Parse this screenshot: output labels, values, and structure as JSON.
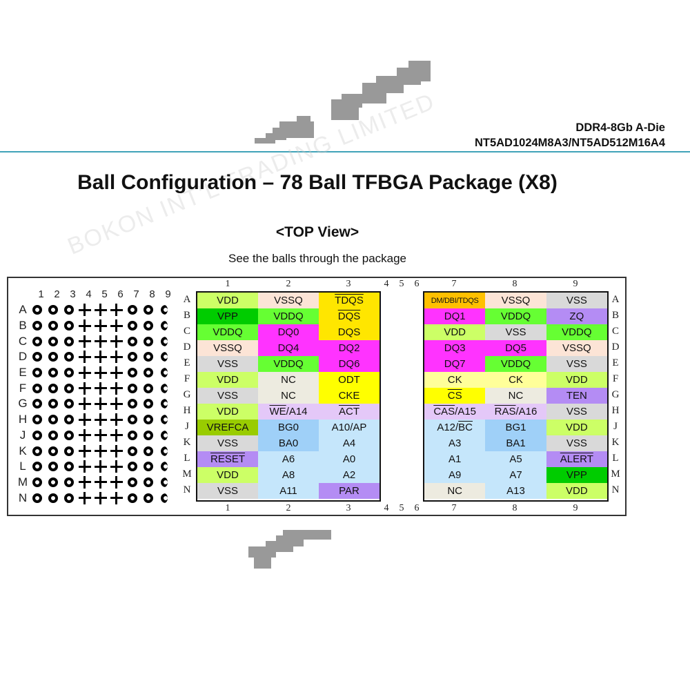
{
  "header": {
    "line1": "DDR4-8Gb A-Die",
    "line2": "NT5AD1024M8A3/NT5AD512M16A4",
    "rule_color": "#3fa3b8"
  },
  "watermark": "BOKON INT'L TRADING LIMITED",
  "title": "Ball Configuration – 78 Ball TFBGA Package (X8)",
  "subtitle": "<TOP View>",
  "caption": "See the balls through the package",
  "mini_map": {
    "columns": [
      "1",
      "2",
      "3",
      "4",
      "5",
      "6",
      "7",
      "8",
      "9"
    ],
    "rows": [
      "A",
      "B",
      "C",
      "D",
      "E",
      "F",
      "G",
      "H",
      "J",
      "K",
      "L",
      "M",
      "N"
    ],
    "pattern": [
      "ball",
      "ball",
      "ball",
      "plus",
      "plus",
      "plus",
      "ball",
      "ball",
      "ball-half"
    ]
  },
  "left_columns": [
    "1",
    "2",
    "3"
  ],
  "gap_columns": [
    "4",
    "5",
    "6"
  ],
  "right_columns": [
    "7",
    "8",
    "9"
  ],
  "rows": [
    "A",
    "B",
    "C",
    "D",
    "E",
    "F",
    "G",
    "H",
    "J",
    "K",
    "L",
    "M",
    "N"
  ],
  "colors": {
    "vdd": "#ccff66",
    "vpp": "#00cc00",
    "vddq": "#66ff33",
    "vssq": "#fce4d6",
    "vss": "#d9d9d9",
    "dq": "#ff33ff",
    "dqs": "#ffe600",
    "yellow": "#ffff00",
    "tdqs_dm": "#ffc000",
    "nc": "#edebe0",
    "cmd_light": "#e4c8f8",
    "purple": "#b48cf4",
    "vrefca": "#99cc00",
    "addr": "#c5e6fb",
    "bank": "#9fd0f8",
    "ck": "#ffff99"
  },
  "left_grid": [
    [
      {
        "t": "VDD",
        "c": "vdd"
      },
      {
        "t": "VSSQ",
        "c": "vssq"
      },
      {
        "t": "TDQS",
        "c": "dqs",
        "ol": true
      }
    ],
    [
      {
        "t": "VPP",
        "c": "vpp"
      },
      {
        "t": "VDDQ",
        "c": "vddq"
      },
      {
        "t": "DQS",
        "c": "dqs",
        "ol": true
      }
    ],
    [
      {
        "t": "VDDQ",
        "c": "vddq"
      },
      {
        "t": "DQ0",
        "c": "dq"
      },
      {
        "t": "DQS",
        "c": "dqs"
      }
    ],
    [
      {
        "t": "VSSQ",
        "c": "vssq"
      },
      {
        "t": "DQ4",
        "c": "dq"
      },
      {
        "t": "DQ2",
        "c": "dq"
      }
    ],
    [
      {
        "t": "VSS",
        "c": "vss"
      },
      {
        "t": "VDDQ",
        "c": "vddq"
      },
      {
        "t": "DQ6",
        "c": "dq"
      }
    ],
    [
      {
        "t": "VDD",
        "c": "vdd"
      },
      {
        "t": "NC",
        "c": "nc"
      },
      {
        "t": "ODT",
        "c": "yellow"
      }
    ],
    [
      {
        "t": "VSS",
        "c": "vss"
      },
      {
        "t": "NC",
        "c": "nc"
      },
      {
        "t": "CKE",
        "c": "yellow"
      }
    ],
    [
      {
        "t": "VDD",
        "c": "vdd"
      },
      {
        "t": "WE/A14",
        "c": "cmd_light",
        "ol_part": "WE"
      },
      {
        "t": "ACT",
        "c": "cmd_light",
        "ol": true
      }
    ],
    [
      {
        "t": "VREFCA",
        "c": "vrefca"
      },
      {
        "t": "BG0",
        "c": "bank"
      },
      {
        "t": "A10/AP",
        "c": "addr"
      }
    ],
    [
      {
        "t": "VSS",
        "c": "vss"
      },
      {
        "t": "BA0",
        "c": "bank"
      },
      {
        "t": "A4",
        "c": "addr"
      }
    ],
    [
      {
        "t": "RESET",
        "c": "purple",
        "ol": true
      },
      {
        "t": "A6",
        "c": "addr"
      },
      {
        "t": "A0",
        "c": "addr"
      }
    ],
    [
      {
        "t": "VDD",
        "c": "vdd"
      },
      {
        "t": "A8",
        "c": "addr"
      },
      {
        "t": "A2",
        "c": "addr"
      }
    ],
    [
      {
        "t": "VSS",
        "c": "vss"
      },
      {
        "t": "A11",
        "c": "addr"
      },
      {
        "t": "PAR",
        "c": "purple"
      }
    ]
  ],
  "right_grid": [
    [
      {
        "t": "DM/DBI/TDQS",
        "c": "tdqs_dm",
        "small": true
      },
      {
        "t": "VSSQ",
        "c": "vssq"
      },
      {
        "t": "VSS",
        "c": "vss"
      }
    ],
    [
      {
        "t": "DQ1",
        "c": "dq"
      },
      {
        "t": "VDDQ",
        "c": "vddq"
      },
      {
        "t": "ZQ",
        "c": "purple"
      }
    ],
    [
      {
        "t": "VDD",
        "c": "vdd"
      },
      {
        "t": "VSS",
        "c": "vss"
      },
      {
        "t": "VDDQ",
        "c": "vddq"
      }
    ],
    [
      {
        "t": "DQ3",
        "c": "dq"
      },
      {
        "t": "DQ5",
        "c": "dq"
      },
      {
        "t": "VSSQ",
        "c": "vssq"
      }
    ],
    [
      {
        "t": "DQ7",
        "c": "dq"
      },
      {
        "t": "VDDQ",
        "c": "vddq"
      },
      {
        "t": "VSS",
        "c": "vss"
      }
    ],
    [
      {
        "t": "CK",
        "c": "ck"
      },
      {
        "t": "CK",
        "c": "ck"
      },
      {
        "t": "VDD",
        "c": "vdd"
      }
    ],
    [
      {
        "t": "CS",
        "c": "yellow",
        "ol": true
      },
      {
        "t": "NC",
        "c": "nc"
      },
      {
        "t": "TEN",
        "c": "purple"
      }
    ],
    [
      {
        "t": "CAS/A15",
        "c": "cmd_light",
        "ol_part": "CAS"
      },
      {
        "t": "RAS/A16",
        "c": "cmd_light",
        "ol_part": "RAS"
      },
      {
        "t": "VSS",
        "c": "vss"
      }
    ],
    [
      {
        "t": "A12/BC",
        "c": "addr",
        "ol_suffix": "BC"
      },
      {
        "t": "BG1",
        "c": "bank"
      },
      {
        "t": "VDD",
        "c": "vdd"
      }
    ],
    [
      {
        "t": "A3",
        "c": "addr"
      },
      {
        "t": "BA1",
        "c": "bank"
      },
      {
        "t": "VSS",
        "c": "vss"
      }
    ],
    [
      {
        "t": "A1",
        "c": "addr"
      },
      {
        "t": "A5",
        "c": "addr"
      },
      {
        "t": "ALERT",
        "c": "purple",
        "ol": true
      }
    ],
    [
      {
        "t": "A9",
        "c": "addr"
      },
      {
        "t": "A7",
        "c": "addr"
      },
      {
        "t": "VPP",
        "c": "vpp"
      }
    ],
    [
      {
        "t": "NC",
        "c": "nc"
      },
      {
        "t": "A13",
        "c": "addr"
      },
      {
        "t": "VDD",
        "c": "vdd"
      }
    ]
  ]
}
